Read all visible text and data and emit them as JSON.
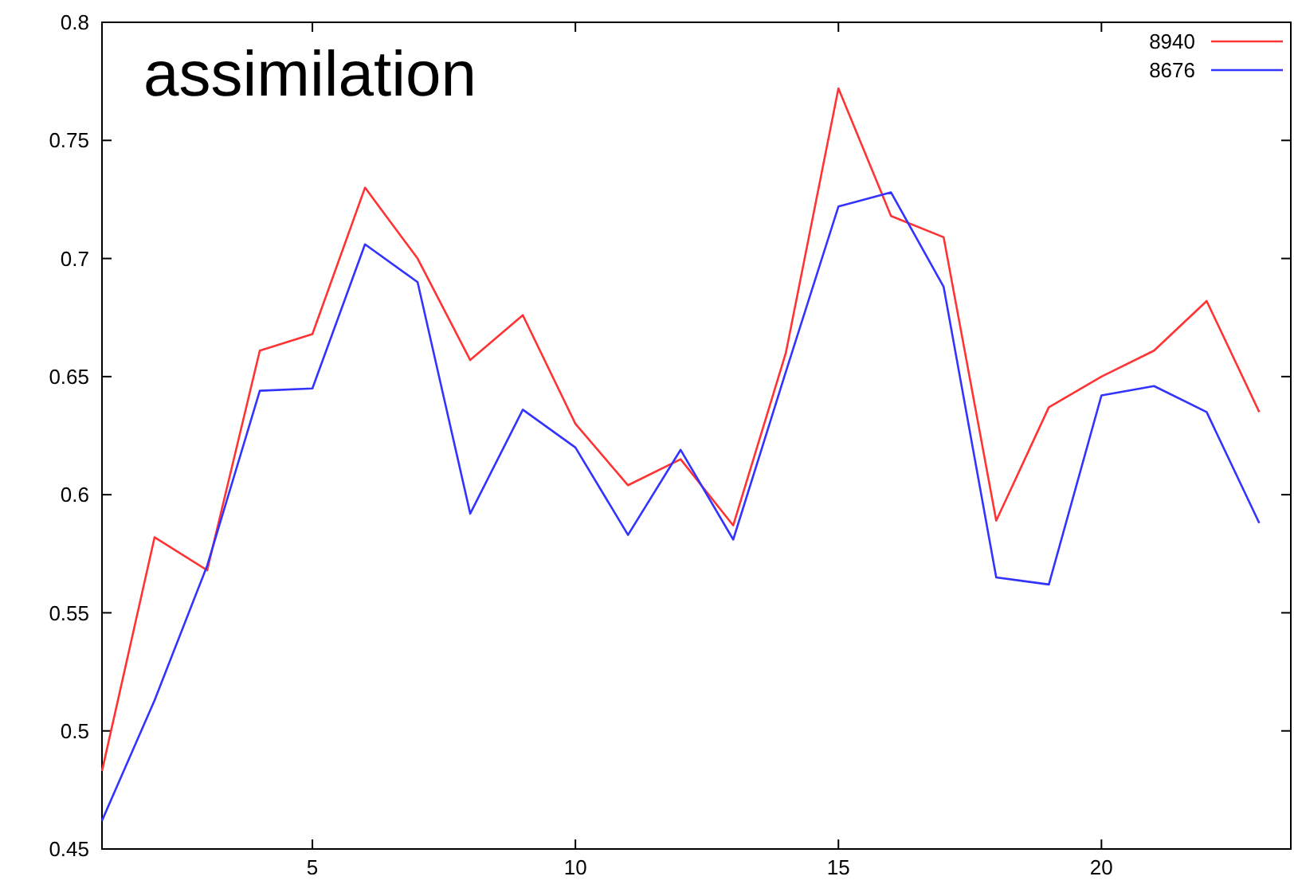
{
  "chart_data": {
    "type": "line",
    "title": "assimilation",
    "x": [
      1,
      2,
      3,
      4,
      5,
      6,
      7,
      8,
      9,
      10,
      11,
      12,
      13,
      14,
      15,
      16,
      17,
      18,
      19,
      20,
      21,
      22,
      23
    ],
    "series": [
      {
        "name": "8940",
        "color": "#ff3333",
        "values": [
          0.483,
          0.582,
          0.568,
          0.661,
          0.668,
          0.73,
          0.7,
          0.657,
          0.676,
          0.63,
          0.604,
          0.615,
          0.587,
          0.66,
          0.772,
          0.718,
          0.709,
          0.589,
          0.637,
          0.65,
          0.661,
          0.682,
          0.635
        ]
      },
      {
        "name": "8676",
        "color": "#3333ff",
        "values": [
          0.462,
          0.513,
          0.57,
          0.644,
          0.645,
          0.706,
          0.69,
          0.592,
          0.636,
          0.62,
          0.583,
          0.619,
          0.581,
          0.652,
          0.722,
          0.728,
          0.688,
          0.565,
          0.562,
          0.642,
          0.646,
          0.635,
          0.588
        ]
      }
    ],
    "xlim": [
      1,
      23.6
    ],
    "xticks": [
      5,
      10,
      15,
      20
    ],
    "ylim": [
      0.45,
      0.8
    ],
    "yticks": [
      0.45,
      {
        "value": 0.5,
        "label": "0.5"
      },
      0.55,
      {
        "value": 0.6,
        "label": "0.6"
      },
      0.65,
      {
        "value": 0.7,
        "label": "0.7"
      },
      0.75,
      {
        "value": 0.8,
        "label": "0.8"
      }
    ],
    "grid": false,
    "legend": "top right",
    "marker": "none",
    "line_style": "solid"
  }
}
